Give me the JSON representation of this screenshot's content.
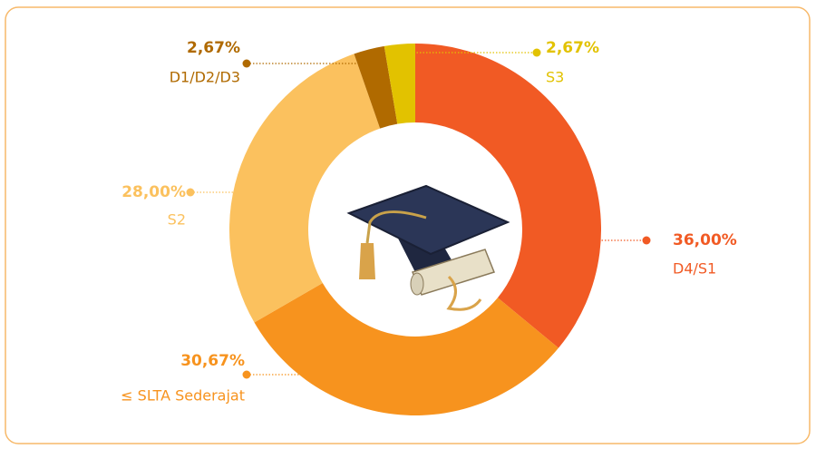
{
  "chart_data": {
    "type": "pie",
    "donut": true,
    "categories": [
      "D4/S1",
      "≤ SLTA Sederajat",
      "S2",
      "D1/D2/D3",
      "S3"
    ],
    "values": [
      36.0,
      30.67,
      28.0,
      2.67,
      2.67
    ],
    "value_labels": [
      "36,00%",
      "30,67%",
      "28,00%",
      "2,67%",
      "2,67%"
    ],
    "colors": [
      "#f15a24",
      "#f7931e",
      "#fbc15e",
      "#b06a00",
      "#e2c200"
    ]
  }
}
